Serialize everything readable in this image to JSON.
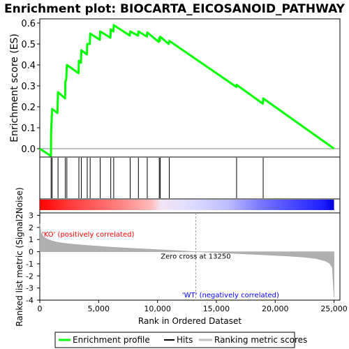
{
  "chart_data": [
    {
      "type": "line",
      "title": "Enrichment plot: BIOCARTA_EICOSANOID_PATHWAY",
      "ylabel": "Enrichment score (ES)",
      "ylim": [
        -0.04,
        0.62
      ],
      "yticks": [
        "0.0",
        "0.1",
        "0.2",
        "0.3",
        "0.4",
        "0.5",
        "0.6"
      ],
      "ytick_values": [
        0.0,
        0.1,
        0.2,
        0.3,
        0.4,
        0.5,
        0.6
      ],
      "xlim": [
        0,
        25500
      ],
      "grid": false,
      "color": "#00ff00",
      "series": [
        {
          "name": "Enrichment profile",
          "x": [
            0,
            950,
            960,
            1050,
            1500,
            1550,
            2150,
            2170,
            2250,
            2300,
            3300,
            3320,
            3500,
            3530,
            4000,
            4030,
            4250,
            4280,
            5100,
            5130,
            6000,
            6030,
            6250,
            6280,
            7650,
            7680,
            8350,
            8380,
            9100,
            9130,
            10100,
            10150,
            10200,
            10230,
            10950,
            11000,
            16700,
            16720,
            18950,
            18980,
            25000
          ],
          "y": [
            0.0,
            -0.035,
            0.08,
            0.19,
            0.17,
            0.27,
            0.24,
            0.32,
            0.33,
            0.4,
            0.36,
            0.42,
            0.41,
            0.47,
            0.45,
            0.5,
            0.5,
            0.55,
            0.52,
            0.56,
            0.53,
            0.57,
            0.56,
            0.59,
            0.54,
            0.56,
            0.54,
            0.56,
            0.535,
            0.555,
            0.51,
            0.53,
            0.515,
            0.535,
            0.5,
            0.515,
            0.295,
            0.305,
            0.215,
            0.24,
            0.0
          ]
        }
      ]
    },
    {
      "type": "hits",
      "series": [
        {
          "name": "Hits",
          "x": [
            960,
            1050,
            1550,
            2170,
            2300,
            3320,
            3530,
            4030,
            4280,
            5130,
            6030,
            6280,
            7680,
            8380,
            9130,
            10150,
            10230,
            11000,
            16720,
            18980
          ]
        }
      ]
    },
    {
      "type": "area",
      "ylabel": "Ranked list metric (Signal2Noise)",
      "xlabel": "Rank in Ordered Dataset",
      "xlim": [
        0,
        25500
      ],
      "ylim": [
        -4,
        3.2
      ],
      "yticks": [
        "3",
        "2",
        "1",
        "0",
        "-1",
        "-2",
        "-3",
        "-4"
      ],
      "ytick_values": [
        3,
        2,
        1,
        0,
        -1,
        -2,
        -3,
        -4
      ],
      "xticks": [
        "0",
        "5,000",
        "10,000",
        "15,000",
        "20,000",
        "25,000"
      ],
      "xtick_values": [
        0,
        5000,
        10000,
        15000,
        20000,
        25000
      ],
      "series": [
        {
          "name": "Ranking metric scores",
          "x": [
            0,
            100,
            300,
            600,
            1000,
            1500,
            2000,
            3000,
            4000,
            5000,
            6000,
            8000,
            10000,
            12000,
            13250,
            15000,
            17000,
            19000,
            21000,
            22500,
            23500,
            24200,
            24600,
            24850,
            25000
          ],
          "y": [
            2.3,
            1.6,
            1.25,
            1.05,
            0.9,
            0.78,
            0.7,
            0.6,
            0.52,
            0.45,
            0.38,
            0.27,
            0.17,
            0.07,
            0.0,
            -0.08,
            -0.17,
            -0.26,
            -0.36,
            -0.46,
            -0.58,
            -0.75,
            -0.95,
            -1.3,
            -3.75
          ]
        }
      ],
      "annotations": [
        "Zero cross at 13250",
        "'KO' (positively correlated)",
        "'WT' (negatively correlated)"
      ],
      "zero_cross": 13250
    }
  ],
  "legend": {
    "items": [
      {
        "label": "Enrichment profile",
        "color": "#00ff00"
      },
      {
        "label": "Hits",
        "color": "#000000"
      },
      {
        "label": "Ranking metric scores",
        "color": "#c0c0c0"
      }
    ]
  },
  "colors": {
    "profile": "#00ff00",
    "positive_label": "#ff0000",
    "negative_label": "#0000ff",
    "metric_fill": "#b0b0b0"
  }
}
